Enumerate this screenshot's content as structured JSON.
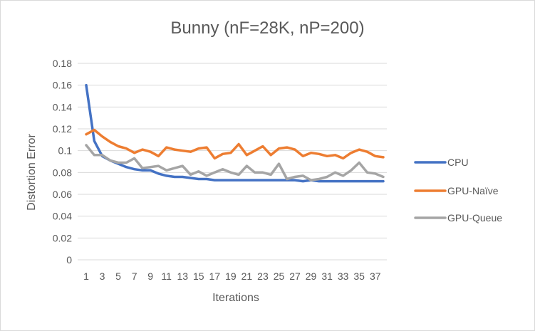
{
  "chart_data": {
    "type": "line",
    "title": "Bunny (nF=28K, nP=200)",
    "xlabel": "Iterations",
    "ylabel": "Distortion Error",
    "x": [
      1,
      2,
      3,
      4,
      5,
      6,
      7,
      8,
      9,
      10,
      11,
      12,
      13,
      14,
      15,
      16,
      17,
      18,
      19,
      20,
      21,
      22,
      23,
      24,
      25,
      26,
      27,
      28,
      29,
      30,
      31,
      32,
      33,
      34,
      35,
      36,
      37,
      38
    ],
    "x_tick_labels": [
      "1",
      "3",
      "5",
      "7",
      "9",
      "11",
      "13",
      "15",
      "17",
      "19",
      "21",
      "23",
      "25",
      "27",
      "29",
      "31",
      "33",
      "35",
      "37"
    ],
    "ylim": [
      0,
      0.18
    ],
    "y_ticks": [
      "0",
      "0.02",
      "0.04",
      "0.06",
      "0.08",
      "0.1",
      "0.12",
      "0.14",
      "0.16",
      "0.18"
    ],
    "grid": true,
    "legend_position": "right",
    "series": [
      {
        "name": "CPU",
        "color": "#4472c4",
        "values": [
          0.16,
          0.109,
          0.095,
          0.091,
          0.088,
          0.085,
          0.083,
          0.082,
          0.082,
          0.079,
          0.077,
          0.076,
          0.076,
          0.075,
          0.074,
          0.074,
          0.073,
          0.073,
          0.073,
          0.073,
          0.073,
          0.073,
          0.073,
          0.073,
          0.073,
          0.073,
          0.073,
          0.072,
          0.073,
          0.072,
          0.072,
          0.072,
          0.072,
          0.072,
          0.072,
          0.072,
          0.072,
          0.072
        ]
      },
      {
        "name": "GPU-Naïve",
        "color": "#ed7d31",
        "values": [
          0.115,
          0.119,
          0.113,
          0.108,
          0.104,
          0.102,
          0.098,
          0.101,
          0.099,
          0.095,
          0.103,
          0.101,
          0.1,
          0.099,
          0.102,
          0.103,
          0.093,
          0.097,
          0.098,
          0.106,
          0.096,
          0.1,
          0.104,
          0.096,
          0.102,
          0.103,
          0.101,
          0.095,
          0.098,
          0.097,
          0.095,
          0.096,
          0.093,
          0.098,
          0.101,
          0.099,
          0.095,
          0.094
        ]
      },
      {
        "name": "GPU-Queue",
        "color": "#a5a5a5",
        "values": [
          0.105,
          0.096,
          0.096,
          0.091,
          0.089,
          0.089,
          0.093,
          0.084,
          0.085,
          0.086,
          0.082,
          0.084,
          0.086,
          0.078,
          0.081,
          0.077,
          0.08,
          0.083,
          0.08,
          0.078,
          0.086,
          0.08,
          0.08,
          0.078,
          0.088,
          0.074,
          0.076,
          0.077,
          0.073,
          0.074,
          0.076,
          0.08,
          0.077,
          0.082,
          0.089,
          0.08,
          0.079,
          0.076
        ]
      }
    ]
  }
}
